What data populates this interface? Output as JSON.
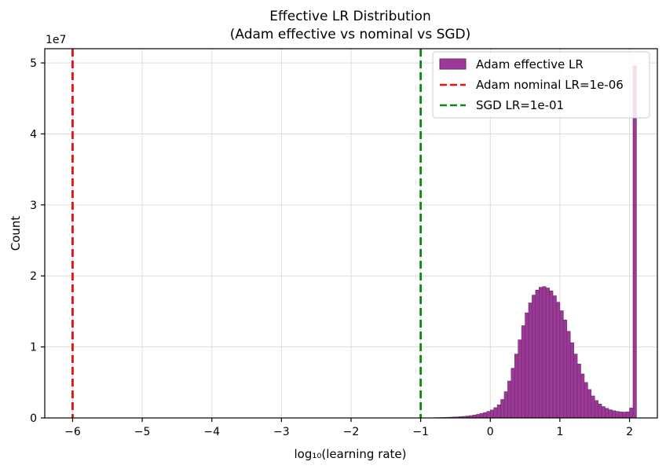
{
  "chart_data": {
    "type": "bar",
    "title": "Effective LR Distribution",
    "subtitle": "(Adam effective vs nominal vs SGD)",
    "xlabel": "log₁₀(learning rate)",
    "ylabel": "Count",
    "y_offset_text": "1e7",
    "xlim": [
      -6.4,
      2.4
    ],
    "ylim": [
      0,
      5.2
    ],
    "x_ticks": [
      -6,
      -5,
      -4,
      -3,
      -2,
      -1,
      0,
      1,
      2
    ],
    "x_tick_labels": [
      "−6",
      "−5",
      "−4",
      "−3",
      "−2",
      "−1",
      "0",
      "1",
      "2"
    ],
    "y_ticks": [
      0,
      1,
      2,
      3,
      4,
      5
    ],
    "y_tick_labels": [
      "0",
      "1",
      "2",
      "3",
      "4",
      "5"
    ],
    "grid": true,
    "legend_position": "top-right",
    "histogram": {
      "name": "Adam effective LR",
      "color": "#9b3a96",
      "edge_color": "#6e2a6b",
      "bin_start": -1.0,
      "bin_width": 0.05,
      "counts_1e7": [
        0.01,
        0.015,
        0.02,
        0.03,
        0.04,
        0.05,
        0.065,
        0.08,
        0.1,
        0.125,
        0.15,
        0.18,
        0.22,
        0.27,
        0.33,
        0.4,
        0.5,
        0.62,
        0.75,
        0.92,
        1.12,
        1.45,
        1.85,
        2.6,
        3.7,
        5.2,
        7.0,
        9.0,
        11.0,
        13.0,
        14.8,
        16.2,
        17.3,
        18.0,
        18.4,
        18.5,
        18.3,
        17.9,
        17.2,
        16.3,
        15.1,
        13.8,
        12.2,
        10.6,
        9.0,
        7.6,
        6.2,
        5.0,
        4.0,
        3.1,
        2.45,
        1.95,
        1.6,
        1.35,
        1.15,
        1.02,
        0.92,
        0.85,
        0.82,
        0.86,
        1.4,
        49.6
      ],
      "bin_offset_per_row": 0.1
    },
    "vlines": [
      {
        "name": "Adam nominal LR=1e-06",
        "x": -6,
        "color": "#e8120c",
        "style": "dashed"
      },
      {
        "name": "SGD LR=1e-01",
        "x": -1,
        "color": "#0b8a0b",
        "style": "dashed"
      }
    ]
  }
}
